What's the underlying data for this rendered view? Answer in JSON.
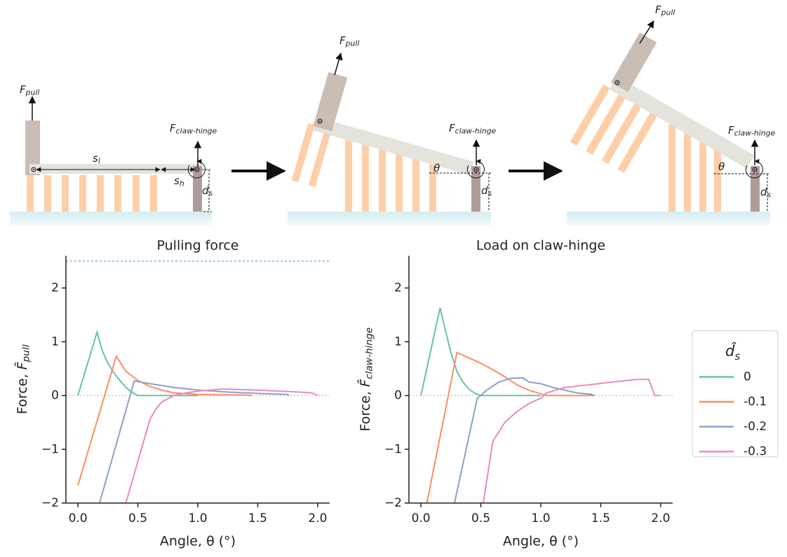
{
  "diagram": {
    "panels": [
      {
        "labels": [
          {
            "symbol": "F",
            "subscript": "pull"
          },
          {
            "symbol": "F",
            "subscript": "claw-hinge"
          },
          {
            "symbol": "s",
            "subscript": "l"
          },
          {
            "symbol": "s",
            "subscript": "h"
          },
          {
            "symbol": "d",
            "subscript": "s"
          }
        ]
      },
      {
        "labels": [
          {
            "symbol": "F",
            "subscript": "pull"
          },
          {
            "symbol": "F",
            "subscript": "claw-hinge"
          },
          {
            "symbol": "θ"
          },
          {
            "symbol": "d",
            "subscript": "s"
          }
        ]
      },
      {
        "labels": [
          {
            "symbol": "F",
            "subscript": "pull"
          },
          {
            "symbol": "F",
            "subscript": "claw-hinge"
          },
          {
            "symbol": "θ"
          },
          {
            "symbol": "d",
            "subscript": "s"
          }
        ]
      }
    ]
  },
  "chart_data": [
    {
      "type": "line",
      "title": "Pulling force",
      "xlabel": "Angle, θ (°)",
      "ylabel": {
        "text": "Force,",
        "symbol": "F̂",
        "subscript": "pull"
      },
      "xlim": [
        -0.1,
        2.1
      ],
      "ylim": [
        -2,
        2.6
      ],
      "xticks": [
        {
          "value": 0,
          "label": "0.0"
        },
        {
          "value": 0.5,
          "label": "0.5"
        },
        {
          "value": 1,
          "label": "1.0"
        },
        {
          "value": 1.5,
          "label": "1.5"
        },
        {
          "value": 2,
          "label": "2.0"
        }
      ],
      "yticks": [
        {
          "value": -2,
          "label": "−2"
        },
        {
          "value": -1,
          "label": "−1"
        },
        0,
        1,
        2
      ],
      "hlines": [
        {
          "value": 2.5,
          "color": "#66c2a5"
        },
        {
          "value": 0,
          "color": "#c8c8c8"
        }
      ],
      "series": [
        {
          "name": "0",
          "color": "#66c2a5",
          "x": [
            0,
            0.16,
            0.2,
            0.25,
            0.3,
            0.35,
            0.4,
            0.45,
            0.5,
            1.0
          ],
          "values": [
            0,
            1.18,
            0.85,
            0.6,
            0.42,
            0.28,
            0.15,
            0.06,
            0,
            0
          ]
        },
        {
          "name": "-0.1",
          "color": "#fc8d62",
          "x": [
            0,
            0.32,
            0.4,
            0.5,
            0.6,
            0.7,
            0.8,
            1.0,
            1.4,
            1.45
          ],
          "values": [
            -1.67,
            0.73,
            0.45,
            0.28,
            0.17,
            0.1,
            0.05,
            0.02,
            0.01,
            0
          ]
        },
        {
          "name": "-0.2",
          "color": "#8da0cb",
          "x": [
            0.18,
            0.47,
            0.6,
            0.8,
            1.0,
            1.2,
            1.5,
            1.75,
            1.76
          ],
          "values": [
            -2,
            0.27,
            0.22,
            0.15,
            0.1,
            0.07,
            0.04,
            0.02,
            0
          ]
        },
        {
          "name": "-0.3",
          "color": "#e78ac3",
          "x": [
            0.4,
            0.6,
            0.65,
            0.7,
            0.8,
            0.9,
            1.0,
            1.2,
            1.4,
            1.6,
            1.8,
            1.95,
            2.0
          ],
          "values": [
            -2,
            -0.45,
            -0.25,
            -0.12,
            0,
            0.05,
            0.08,
            0.12,
            0.11,
            0.09,
            0.07,
            0.05,
            0
          ]
        }
      ]
    },
    {
      "type": "line",
      "title": "Load on claw-hinge",
      "xlabel": "Angle, θ (°)",
      "ylabel": {
        "text": "Force,",
        "symbol": "F̂",
        "subscript": "claw-hinge"
      },
      "xlim": [
        -0.1,
        2.1
      ],
      "ylim": [
        -2,
        2.6
      ],
      "xticks": [
        {
          "value": 0,
          "label": "0.0"
        },
        {
          "value": 0.5,
          "label": "0.5"
        },
        {
          "value": 1,
          "label": "1.0"
        },
        {
          "value": 1.5,
          "label": "1.5"
        },
        {
          "value": 2,
          "label": "2.0"
        }
      ],
      "yticks": [
        {
          "value": -2,
          "label": "−2"
        },
        {
          "value": -1,
          "label": "−1"
        },
        0,
        1,
        2
      ],
      "hlines": [
        {
          "value": 0,
          "color": "#c8c8c8"
        }
      ],
      "legend": "outside right",
      "legend_title": {
        "symbol": "d̂",
        "subscript": "s"
      },
      "series": [
        {
          "name": "0",
          "color": "#66c2a5",
          "x": [
            0,
            0.16,
            0.2,
            0.25,
            0.3,
            0.35,
            0.4,
            0.45,
            0.5,
            1.0
          ],
          "values": [
            0,
            1.63,
            1.25,
            0.8,
            0.45,
            0.25,
            0.12,
            0.04,
            0,
            0
          ]
        },
        {
          "name": "-0.1",
          "color": "#fc8d62",
          "x": [
            0.05,
            0.3,
            0.4,
            0.5,
            0.6,
            0.7,
            0.8,
            0.9,
            1.0,
            1.05,
            1.45
          ],
          "values": [
            -2,
            0.8,
            0.7,
            0.6,
            0.48,
            0.35,
            0.2,
            0.1,
            0.03,
            0,
            0
          ]
        },
        {
          "name": "-0.2",
          "color": "#8da0cb",
          "x": [
            0.28,
            0.47,
            0.55,
            0.65,
            0.75,
            0.85,
            0.9,
            1.0,
            1.1,
            1.3,
            1.43,
            1.44
          ],
          "values": [
            -2,
            -0.05,
            0.1,
            0.25,
            0.32,
            0.33,
            0.25,
            0.22,
            0.15,
            0.05,
            0.02,
            0
          ]
        },
        {
          "name": "-0.3",
          "color": "#e78ac3",
          "x": [
            0.52,
            0.6,
            0.7,
            0.8,
            0.9,
            1.0,
            1.05,
            1.2,
            1.4,
            1.6,
            1.8,
            1.9,
            1.95,
            2.0
          ],
          "values": [
            -2,
            -0.85,
            -0.5,
            -0.3,
            -0.15,
            -0.05,
            0.05,
            0.15,
            0.2,
            0.25,
            0.3,
            0.3,
            0,
            0
          ]
        }
      ]
    }
  ]
}
